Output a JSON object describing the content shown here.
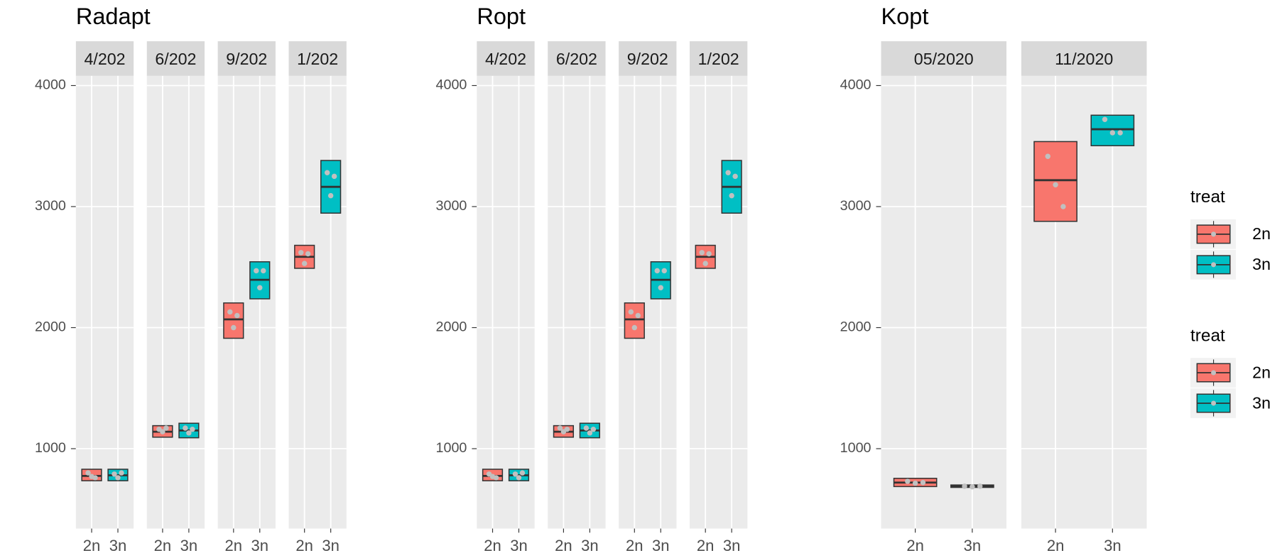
{
  "chart_data": [
    {
      "type": "boxplot",
      "title": "Radapt",
      "ylim": [
        340,
        4080
      ],
      "yticks": [
        1000,
        2000,
        3000,
        4000
      ],
      "facets": [
        {
          "label": "4/202",
          "categories": [
            "2n",
            "3n"
          ],
          "boxes": [
            {
              "q1": 735,
              "median": 775,
              "q3": 830,
              "points": [
                800,
                770,
                760
              ]
            },
            {
              "q1": 735,
              "median": 780,
              "q3": 830,
              "points": [
                790,
                760,
                800
              ]
            }
          ]
        },
        {
          "label": "6/202",
          "categories": [
            "2n",
            "3n"
          ],
          "boxes": [
            {
              "q1": 1095,
              "median": 1140,
              "q3": 1190,
              "points": [
                1160,
                1140,
                1170
              ]
            },
            {
              "q1": 1090,
              "median": 1150,
              "q3": 1210,
              "points": [
                1170,
                1130,
                1160
              ]
            }
          ]
        },
        {
          "label": "9/202",
          "categories": [
            "2n",
            "3n"
          ],
          "boxes": [
            {
              "q1": 1912,
              "median": 2068,
              "q3": 2204,
              "points": [
                2130,
                2000,
                2100
              ]
            },
            {
              "q1": 2238,
              "median": 2395,
              "q3": 2544,
              "points": [
                2470,
                2330,
                2470
              ]
            }
          ]
        },
        {
          "label": "1/202",
          "categories": [
            "2n",
            "3n"
          ],
          "boxes": [
            {
              "q1": 2490,
              "median": 2585,
              "q3": 2680,
              "points": [
                2620,
                2530,
                2610
              ]
            },
            {
              "q1": 2946,
              "median": 3163,
              "q3": 3381,
              "points": [
                3280,
                3090,
                3250
              ]
            }
          ]
        }
      ]
    },
    {
      "type": "boxplot",
      "title": "Ropt",
      "ylim": [
        340,
        4080
      ],
      "yticks": [
        1000,
        2000,
        3000,
        4000
      ],
      "facets": [
        {
          "label": "4/202",
          "categories": [
            "2n",
            "3n"
          ],
          "boxes": [
            {
              "q1": 735,
              "median": 775,
              "q3": 830,
              "points": [
                790,
                770,
                760
              ]
            },
            {
              "q1": 735,
              "median": 780,
              "q3": 830,
              "points": [
                790,
                760,
                800
              ]
            }
          ]
        },
        {
          "label": "6/202",
          "categories": [
            "2n",
            "3n"
          ],
          "boxes": [
            {
              "q1": 1095,
              "median": 1140,
              "q3": 1190,
              "points": [
                1170,
                1140,
                1160
              ]
            },
            {
              "q1": 1090,
              "median": 1150,
              "q3": 1210,
              "points": [
                1170,
                1130,
                1160
              ]
            }
          ]
        },
        {
          "label": "9/202",
          "categories": [
            "2n",
            "3n"
          ],
          "boxes": [
            {
              "q1": 1912,
              "median": 2068,
              "q3": 2204,
              "points": [
                2130,
                2000,
                2100
              ]
            },
            {
              "q1": 2238,
              "median": 2395,
              "q3": 2544,
              "points": [
                2470,
                2330,
                2470
              ]
            }
          ]
        },
        {
          "label": "1/202",
          "categories": [
            "2n",
            "3n"
          ],
          "boxes": [
            {
              "q1": 2490,
              "median": 2585,
              "q3": 2680,
              "points": [
                2620,
                2530,
                2610
              ]
            },
            {
              "q1": 2946,
              "median": 3163,
              "q3": 3381,
              "points": [
                3280,
                3090,
                3250
              ]
            }
          ]
        }
      ]
    },
    {
      "type": "boxplot",
      "title": "Kopt",
      "ylim": [
        340,
        4080
      ],
      "yticks": [
        1000,
        2000,
        3000,
        4000
      ],
      "facets": [
        {
          "label": "05/2020",
          "categories": [
            "2n",
            "3n"
          ],
          "boxes": [
            {
              "q1": 687,
              "median": 720,
              "q3": 755,
              "points": [
                730,
                715,
                720
              ]
            },
            {
              "q1": 680,
              "median": 690,
              "q3": 700,
              "points": [
                690,
                685,
                690
              ]
            }
          ]
        },
        {
          "label": "11/2020",
          "categories": [
            "2n",
            "3n"
          ],
          "boxes": [
            {
              "q1": 2878,
              "median": 3218,
              "q3": 3537,
              "points": [
                3415,
                3180,
                3000
              ]
            },
            {
              "q1": 3503,
              "median": 3639,
              "q3": 3755,
              "points": [
                3720,
                3610,
                3610
              ]
            }
          ]
        }
      ]
    }
  ],
  "legends": [
    {
      "title": "treat",
      "items": [
        {
          "name": "2n",
          "color": "#F8766D"
        },
        {
          "name": "3n",
          "color": "#00BFC4"
        }
      ]
    },
    {
      "title": "treat",
      "items": [
        {
          "name": "2n",
          "color": "#F8766D"
        },
        {
          "name": "3n",
          "color": "#00BFC4"
        }
      ]
    }
  ]
}
